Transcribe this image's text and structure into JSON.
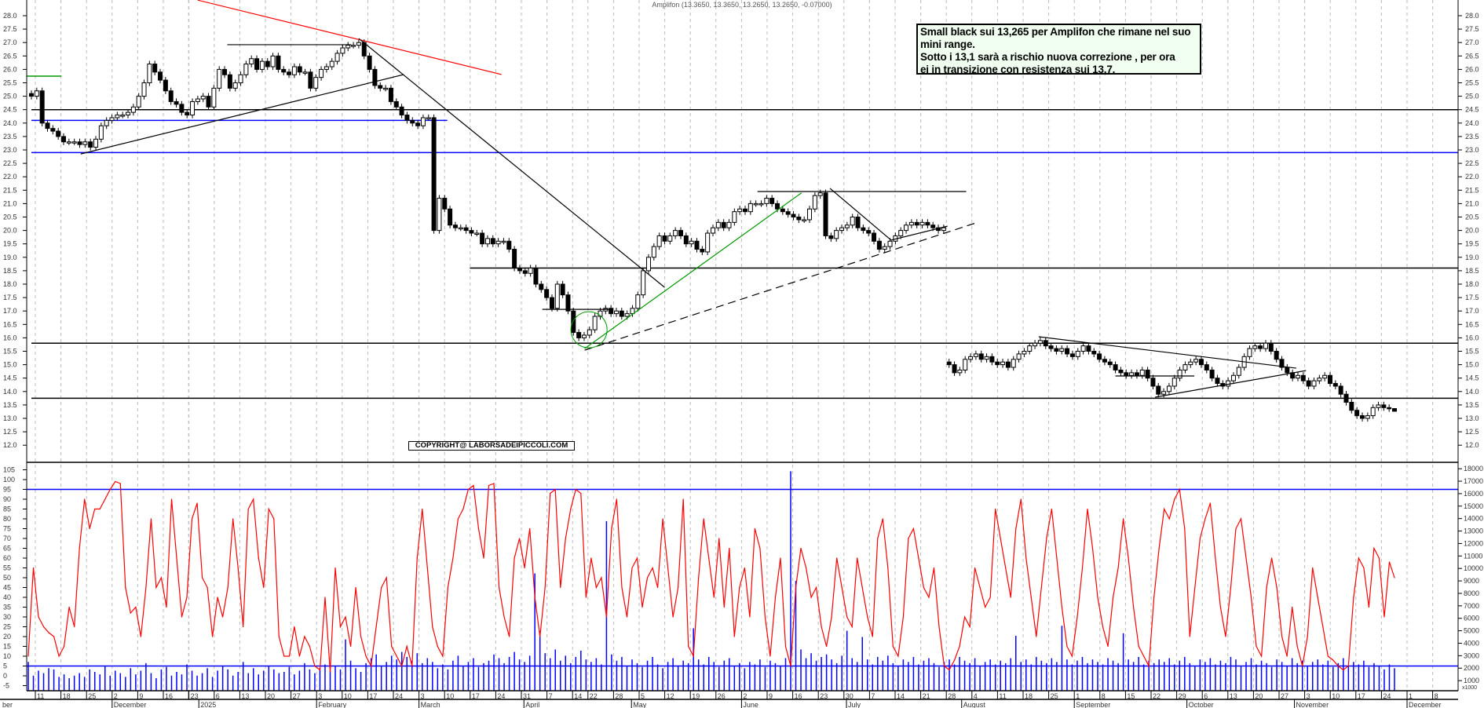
{
  "header": {
    "title": "Amplifon (13.3650, 13.3650, 13.2650, 13.2650, -0.07000)"
  },
  "note": {
    "lines": [
      "Small black sui 13,265 per Amplifon che rimane nel suo",
      "mini range.",
      "Sotto i 13,1 sarà a rischio nuova correzione , per ora",
      "ei in transizione con resistenza sui 13,7."
    ],
    "background": "#f0fff0"
  },
  "copyright": "COPYRIGHT@ LABORSADEIPICCOLI.COM",
  "colors": {
    "candle_up": "#ffffff",
    "candle_down": "#000000",
    "oscillator": "#ff0000",
    "volume": "#0000ff",
    "support_blue": "#0000ff",
    "trend_red": "#ff0000",
    "trend_green": "#009900",
    "grid": "#bbbbbb"
  },
  "chart_data": [
    {
      "type": "candlestick",
      "panel": "price",
      "ylim": [
        12.0,
        28.0
      ],
      "grid": "vertical dashed weekly",
      "y_ticks": [
        "28.0",
        "27.5",
        "27.0",
        "26.5",
        "26.0",
        "25.5",
        "25.0",
        "24.5",
        "24.0",
        "23.5",
        "23.0",
        "22.5",
        "22.0",
        "21.5",
        "21.0",
        "20.5",
        "20.0",
        "19.5",
        "19.0",
        "18.5",
        "18.0",
        "17.5",
        "17.0",
        "16.5",
        "16.0",
        "15.5",
        "15.0",
        "14.5",
        "14.0",
        "13.5",
        "13.0",
        "12.5",
        "12.0"
      ],
      "last_bar": {
        "open": 13.365,
        "high": 13.365,
        "low": 13.265,
        "close": 13.265
      },
      "closes": [
        25.0,
        25.2,
        24.0,
        23.8,
        23.7,
        23.5,
        23.3,
        23.3,
        23.3,
        23.2,
        23.3,
        23.1,
        23.4,
        23.9,
        24.1,
        24.2,
        24.3,
        24.3,
        24.4,
        24.6,
        25.0,
        25.5,
        26.2,
        25.9,
        25.6,
        25.2,
        24.8,
        24.7,
        24.4,
        24.3,
        24.8,
        24.9,
        25.0,
        24.6,
        25.3,
        26.0,
        25.8,
        25.3,
        25.5,
        25.8,
        26.2,
        26.4,
        26.0,
        26.3,
        26.1,
        26.5,
        26.0,
        25.9,
        25.8,
        26.1,
        25.9,
        25.9,
        25.3,
        25.7,
        26.0,
        26.1,
        26.3,
        26.6,
        26.8,
        26.9,
        26.9,
        27.0,
        26.5,
        26.0,
        25.4,
        25.3,
        25.3,
        24.8,
        24.6,
        24.3,
        24.1,
        24.0,
        23.9,
        24.2,
        24.2,
        20.0,
        21.2,
        20.8,
        20.2,
        20.1,
        20.1,
        20.0,
        19.9,
        19.9,
        19.5,
        19.7,
        19.5,
        19.6,
        19.6,
        19.3,
        18.6,
        18.5,
        18.4,
        18.6,
        18.0,
        17.8,
        17.5,
        17.1,
        18.0,
        17.6,
        17.0,
        16.2,
        16.0,
        16.1,
        16.3,
        16.8,
        17.0,
        17.1,
        16.9,
        17.0,
        16.8,
        16.9,
        17.1,
        17.6,
        18.5,
        19.0,
        19.4,
        19.8,
        19.6,
        19.8,
        20.0,
        19.8,
        19.5,
        19.6,
        19.3,
        19.2,
        19.9,
        20.1,
        20.3,
        20.1,
        20.3,
        20.7,
        20.8,
        20.7,
        21.0,
        21.0,
        21.0,
        21.2,
        21.0,
        20.8,
        20.7,
        20.6,
        20.5,
        20.4,
        20.4,
        20.8,
        21.3,
        21.4,
        19.8,
        19.7,
        20.0,
        20.1,
        20.2,
        20.5,
        20.1,
        20.0,
        19.9,
        19.6,
        19.3,
        19.4,
        19.6,
        19.8,
        20.0,
        20.2,
        20.3,
        20.2,
        20.3,
        20.2,
        20.1,
        20.0,
        20.1,
        15.0,
        14.7,
        14.8,
        15.2,
        15.3,
        15.4,
        15.2,
        15.3,
        15.1,
        15.0,
        15.1,
        14.9,
        15.2,
        15.4,
        15.5,
        15.7,
        15.8,
        15.9,
        15.7,
        15.6,
        15.5,
        15.6,
        15.4,
        15.3,
        15.5,
        15.7,
        15.5,
        15.4,
        15.2,
        15.1,
        15.0,
        14.8,
        14.7,
        14.6,
        14.7,
        14.6,
        14.8,
        14.5,
        14.2,
        13.9,
        14.0,
        14.2,
        14.5,
        14.8,
        15.0,
        15.1,
        15.2,
        15.0,
        14.8,
        14.5,
        14.3,
        14.2,
        14.4,
        14.6,
        14.9,
        15.3,
        15.6,
        15.7,
        15.6,
        15.8,
        15.5,
        15.2,
        14.9,
        14.7,
        14.5,
        14.6,
        14.4,
        14.2,
        14.4,
        14.5,
        14.6,
        14.3,
        14.2,
        13.9,
        13.6,
        13.3,
        13.1,
        13.0,
        13.1,
        13.4,
        13.5,
        13.4,
        13.365,
        13.265
      ],
      "horizontal_levels": [
        {
          "price": 24.5,
          "color": "#000000",
          "from_bar": 0
        },
        {
          "price": 24.1,
          "color": "#0000ff",
          "from_bar": 0,
          "to_bar": 77.5
        },
        {
          "price": 22.9,
          "color": "#0000ff",
          "from_bar": 0
        },
        {
          "price": 18.6,
          "color": "#000000",
          "from_bar": 81.7
        },
        {
          "price": 15.8,
          "color": "#000000",
          "from_bar": 0
        },
        {
          "price": 13.75,
          "color": "#000000",
          "from_bar": 0
        },
        {
          "price": 25.75,
          "color": "#009900",
          "from_bar": -1.5,
          "to_bar": 5.6
        }
      ],
      "trendlines": [
        {
          "from": [
            31.0,
            28.58
          ],
          "to": [
            87.6,
            25.81
          ],
          "color": "#ff0000"
        },
        {
          "from": [
            9.2,
            22.85
          ],
          "to": [
            69.4,
            25.81
          ],
          "color": "#000000"
        },
        {
          "from": [
            36.5,
            26.92
          ],
          "to": [
            59.6,
            26.92
          ],
          "color": "#000000"
        },
        {
          "from": [
            61.0,
            27.15
          ],
          "to": [
            118.0,
            17.88
          ],
          "color": "#000000"
        },
        {
          "from": [
            95.2,
            17.06
          ],
          "to": [
            108.4,
            17.06
          ],
          "color": "#000000"
        },
        {
          "from": [
            103.1,
            15.6
          ],
          "to": [
            143.5,
            21.4
          ],
          "color": "#009900"
        },
        {
          "from": [
            103.1,
            15.54
          ],
          "to": [
            176.0,
            20.28
          ],
          "color": "#000000",
          "dashed": true
        },
        {
          "from": [
            135.3,
            21.45
          ],
          "to": [
            174.2,
            21.45
          ],
          "color": "#000000"
        },
        {
          "from": [
            148.8,
            21.57
          ],
          "to": [
            160.2,
            19.64
          ],
          "color": "#000000"
        },
        {
          "from": [
            160.2,
            19.64
          ],
          "to": [
            170.7,
            20.16
          ],
          "color": "#000000"
        },
        {
          "from": [
            187.7,
            16.04
          ],
          "to": [
            235.7,
            14.87
          ],
          "color": "#000000"
        },
        {
          "from": [
            202.0,
            14.58
          ],
          "to": [
            216.7,
            14.58
          ],
          "color": "#000000"
        },
        {
          "from": [
            209.4,
            13.79
          ],
          "to": [
            237.5,
            14.78
          ],
          "color": "#000000"
        }
      ],
      "circles": [
        {
          "center": [
            103.9,
            16.3
          ],
          "color": "#009900"
        }
      ]
    },
    {
      "type": "line",
      "panel": "oscillator",
      "ylim": [
        -5,
        105
      ],
      "y_ticks": [
        "105",
        "100",
        "95",
        "90",
        "85",
        "80",
        "75",
        "70",
        "65",
        "60",
        "55",
        "50",
        "45",
        "40",
        "35",
        "30",
        "25",
        "20",
        "15",
        "10",
        "5",
        "0",
        "-5"
      ],
      "levels": [
        95,
        5
      ],
      "values": [
        10,
        55,
        30,
        25,
        22,
        20,
        10,
        15,
        35,
        25,
        65,
        90,
        75,
        85,
        85,
        90,
        95,
        99,
        98,
        45,
        32,
        35,
        20,
        45,
        80,
        45,
        50,
        35,
        90,
        60,
        30,
        40,
        80,
        88,
        50,
        45,
        20,
        40,
        30,
        45,
        80,
        55,
        25,
        85,
        90,
        60,
        45,
        85,
        80,
        20,
        10,
        10,
        25,
        10,
        20,
        15,
        5,
        3,
        40,
        2,
        55,
        25,
        30,
        15,
        45,
        20,
        10,
        5,
        25,
        45,
        50,
        15,
        10,
        5,
        15,
        5,
        60,
        85,
        55,
        25,
        15,
        10,
        45,
        60,
        80,
        85,
        95,
        97,
        75,
        60,
        97,
        98,
        45,
        30,
        20,
        60,
        70,
        55,
        75,
        40,
        20,
        45,
        93,
        95,
        45,
        70,
        85,
        95,
        93,
        40,
        60,
        45,
        50,
        30,
        75,
        90,
        45,
        30,
        55,
        60,
        35,
        50,
        55,
        45,
        80,
        55,
        30,
        45,
        90,
        15,
        10,
        50,
        80,
        60,
        40,
        70,
        35,
        65,
        20,
        45,
        55,
        30,
        75,
        65,
        30,
        10,
        40,
        60,
        15,
        5,
        45,
        65,
        55,
        40,
        45,
        25,
        15,
        30,
        60,
        45,
        30,
        25,
        60,
        45,
        30,
        20,
        70,
        80,
        55,
        15,
        10,
        30,
        70,
        75,
        60,
        45,
        40,
        55,
        25,
        5,
        3,
        8,
        15,
        30,
        25,
        55,
        45,
        35,
        40,
        85,
        70,
        55,
        40,
        75,
        90,
        60,
        40,
        20,
        45,
        70,
        85,
        60,
        35,
        15,
        10,
        30,
        55,
        85,
        65,
        40,
        25,
        15,
        40,
        55,
        80,
        60,
        35,
        15,
        10,
        5,
        40,
        65,
        85,
        80,
        90,
        95,
        75,
        20,
        45,
        70,
        80,
        88,
        60,
        35,
        20,
        45,
        75,
        80,
        60,
        40,
        15,
        10,
        45,
        60,
        45,
        20,
        10,
        35,
        15,
        5,
        20,
        55,
        40,
        25,
        10,
        8,
        5,
        3,
        5,
        40,
        60,
        55,
        35,
        65,
        60,
        30,
        58,
        50
      ]
    },
    {
      "type": "bar",
      "panel": "volume",
      "unit": "x1000",
      "ylim": [
        0,
        18000
      ],
      "y_ticks": [
        "18000",
        "17000",
        "16000",
        "15000",
        "14000",
        "13000",
        "12000",
        "11000",
        "10000",
        "9000",
        "8000",
        "7000",
        "6000",
        "5000",
        "4000",
        "3000",
        "2000",
        "1000"
      ],
      "values_thousands": [
        2.5,
        1.4,
        1.8,
        1.6,
        2.0,
        1.9,
        1.3,
        1.5,
        1.2,
        1.4,
        1.6,
        1.3,
        1.9,
        1.7,
        1.5,
        2.2,
        1.4,
        1.8,
        1.6,
        1.3,
        2.0,
        1.5,
        1.8,
        2.4,
        1.6,
        1.2,
        1.9,
        2.1,
        1.4,
        1.7,
        1.5,
        2.3,
        1.8,
        1.4,
        1.6,
        2.0,
        1.3,
        1.8,
        2.2,
        1.9,
        1.4,
        1.7,
        2.5,
        1.6,
        2.0,
        1.5,
        1.8,
        2.2,
        1.9,
        1.6,
        1.7,
        2.1,
        1.5,
        1.8,
        2.4,
        1.9,
        1.6,
        2.0,
        2.3,
        1.8,
        2.2,
        1.9,
        4.3,
        2.6,
        2.0,
        1.7,
        2.4,
        2.8,
        3.1,
        2.2,
        2.5,
        3.0,
        2.7,
        3.3,
        2.9,
        2.6,
        3.2,
        2.4,
        2.8,
        2.5,
        2.0,
        2.3,
        1.9,
        2.6,
        3.0,
        2.2,
        2.5,
        2.8,
        2.1,
        2.4,
        2.6,
        3.1,
        2.8,
        2.4,
        2.9,
        3.3,
        2.7,
        2.5,
        3.0,
        9.6,
        5.0,
        3.2,
        2.8,
        3.5,
        2.6,
        3.0,
        2.4,
        2.9,
        3.4,
        2.7,
        2.5,
        2.8,
        2.3,
        13.8,
        3.1,
        2.6,
        2.9,
        2.2,
        2.7,
        2.4,
        2.1,
        2.6,
        2.9,
        2.3,
        2.0,
        2.5,
        2.8,
        2.2,
        2.6,
        2.4,
        5.2,
        2.7,
        2.3,
        2.9,
        2.5,
        2.1,
        2.6,
        2.8,
        2.2,
        2.4,
        2.0,
        2.5,
        2.3,
        2.7,
        2.1,
        2.6,
        2.4,
        2.2,
        2.8,
        17.8,
        9.0,
        3.5,
        2.8,
        3.2,
        2.6,
        2.9,
        3.1,
        2.7,
        2.4,
        3.0,
        5.0,
        2.8,
        2.5,
        4.5,
        2.7,
        2.3,
        2.9,
        2.6,
        3.0,
        2.4,
        2.2,
        2.7,
        2.5,
        2.9,
        2.3,
        2.6,
        2.8,
        2.4,
        2.1,
        2.5,
        2.7,
        2.3,
        2.9,
        2.6,
        2.4,
        2.8,
        2.2,
        2.5,
        2.7,
        2.3,
        2.6,
        2.4,
        2.8,
        4.6,
        2.5,
        2.7,
        2.3,
        2.9,
        2.6,
        2.4,
        2.8,
        2.5,
        5.4,
        2.7,
        2.3,
        2.6,
        2.9,
        2.4,
        2.7,
        2.5,
        2.3,
        2.8,
        2.6,
        2.4,
        4.8,
        2.7,
        2.5,
        2.9,
        2.3,
        2.6,
        2.4,
        2.7,
        2.5,
        2.8,
        2.3,
        2.6,
        2.9,
        2.4,
        2.2,
        2.7,
        2.5,
        2.8,
        2.3,
        2.6,
        2.4,
        2.9,
        2.7,
        2.2,
        2.5,
        2.8,
        2.3,
        2.6,
        2.4,
        2.1,
        2.7,
        2.5,
        2.2,
        2.8,
        2.4,
        2.6,
        2.2,
        2.5,
        2.7,
        2.3,
        2.6,
        2.1,
        2.4,
        2.8,
        2.2,
        2.5,
        2.3,
        2.6,
        2.1,
        2.4,
        2.2,
        1.9,
        2.3,
        2.0
      ]
    }
  ],
  "x_axis": {
    "week_labels": [
      "11",
      "18",
      "25",
      "2",
      "9",
      "16",
      "23",
      "",
      "6",
      "13",
      "20",
      "27",
      "3",
      "10",
      "17",
      "24",
      "3",
      "10",
      "17",
      "24",
      "31",
      "7",
      "14",
      "22",
      "28",
      "5",
      "12",
      "19",
      "26",
      "2",
      "9",
      "16",
      "23",
      "30",
      "7",
      "14",
      "21",
      "28",
      "4",
      "11",
      "18",
      "25",
      "1",
      "8",
      "15",
      "22",
      "29",
      "6",
      "13",
      "20",
      "27",
      "3",
      "10",
      "17",
      "24",
      "1",
      "8"
    ],
    "month_labels": [
      "ber",
      "December",
      "2025",
      "February",
      "March",
      "April",
      "May",
      "June",
      "July",
      "August",
      "September",
      "October",
      "November",
      "December"
    ]
  }
}
